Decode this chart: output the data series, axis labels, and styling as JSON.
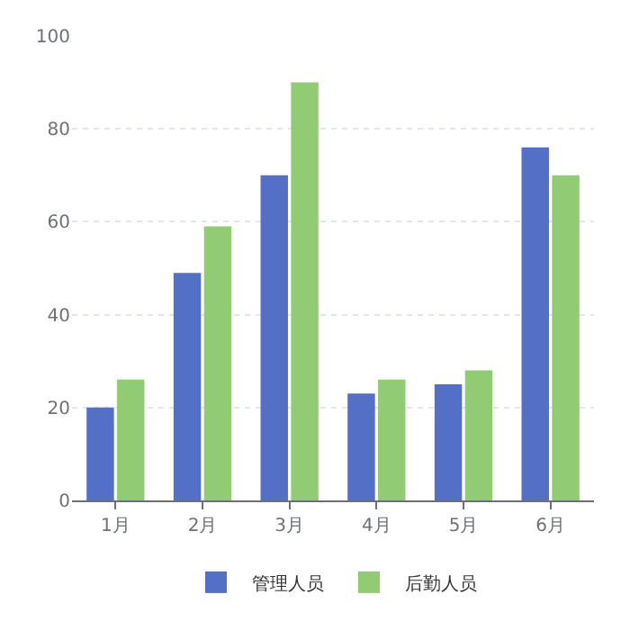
{
  "chart_data": {
    "type": "bar",
    "categories": [
      "1月",
      "2月",
      "3月",
      "4月",
      "5月",
      "6月"
    ],
    "series": [
      {
        "name": "管理人员",
        "color": "#5470c6",
        "values": [
          20,
          49,
          70,
          23,
          25,
          76
        ]
      },
      {
        "name": "后勤人员",
        "color": "#91cc75",
        "values": [
          26,
          59,
          90,
          26,
          28,
          70
        ]
      }
    ],
    "ylim": [
      0,
      100
    ],
    "yticks": [
      0,
      20,
      40,
      60,
      80,
      100
    ],
    "grid": "y",
    "legend": "bottom"
  }
}
